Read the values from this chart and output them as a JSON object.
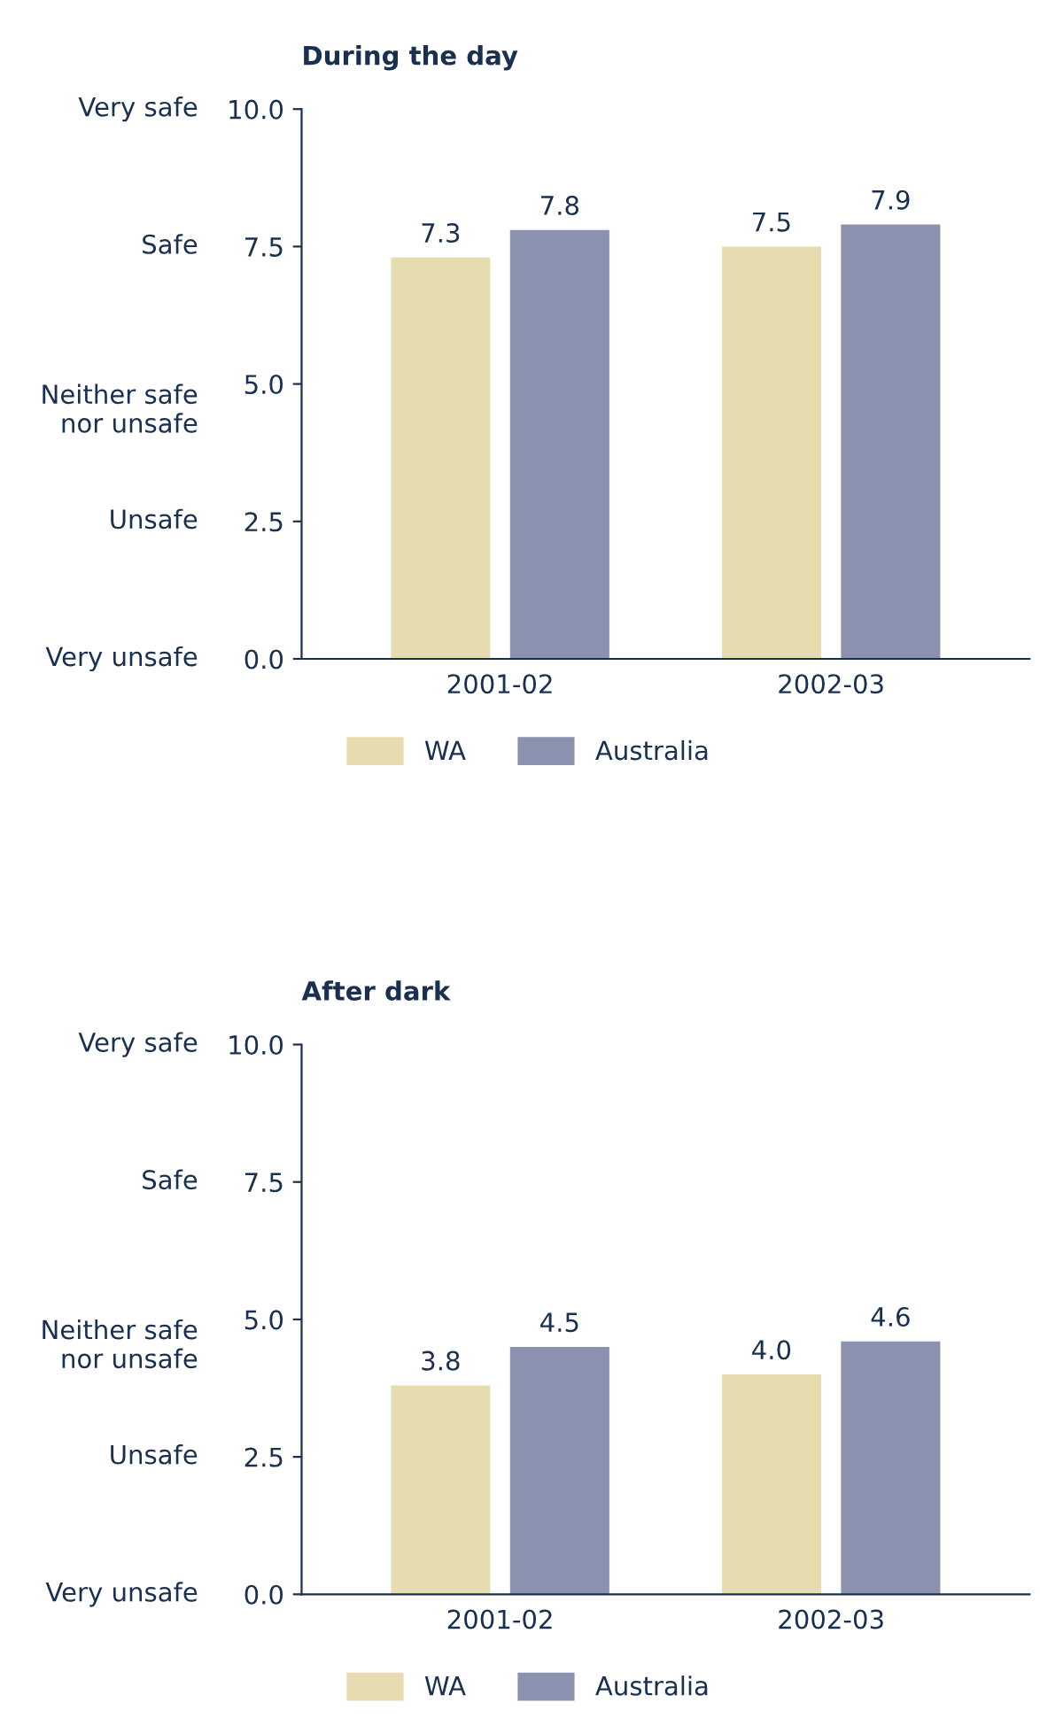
{
  "chart_data": [
    {
      "type": "bar",
      "title": "During the day",
      "categories": [
        "2001-02",
        "2002-03"
      ],
      "series": [
        {
          "name": "WA",
          "color": "#e6dcb0",
          "values": [
            7.3,
            7.5
          ],
          "value_labels": [
            "7.3",
            "7.5"
          ]
        },
        {
          "name": "Australia",
          "color": "#8a92b0",
          "values": [
            7.8,
            7.9
          ],
          "value_labels": [
            "7.8",
            "7.9"
          ]
        }
      ],
      "ylim": [
        0,
        10
      ],
      "yticks": [
        {
          "value": 0,
          "label": "0.0"
        },
        {
          "value": 2.5,
          "label": "2.5"
        },
        {
          "value": 5,
          "label": "5.0"
        },
        {
          "value": 7.5,
          "label": "7.5"
        },
        {
          "value": 10,
          "label": "10.0"
        }
      ],
      "annotations": [
        "Very unsafe",
        "Unsafe",
        "Neither safe\nnor unsafe",
        "Safe",
        "Very safe"
      ],
      "legend": "bottom"
    },
    {
      "type": "bar",
      "title": "After dark",
      "categories": [
        "2001-02",
        "2002-03"
      ],
      "series": [
        {
          "name": "WA",
          "color": "#e6dcb0",
          "values": [
            3.8,
            4.0
          ],
          "value_labels": [
            "3.8",
            "4.0"
          ]
        },
        {
          "name": "Australia",
          "color": "#8a92b0",
          "values": [
            4.5,
            4.6
          ],
          "value_labels": [
            "4.5",
            "4.6"
          ]
        }
      ],
      "ylim": [
        0,
        10
      ],
      "yticks": [
        {
          "value": 0,
          "label": "0.0"
        },
        {
          "value": 2.5,
          "label": "2.5"
        },
        {
          "value": 5,
          "label": "5.0"
        },
        {
          "value": 7.5,
          "label": "7.5"
        },
        {
          "value": 10,
          "label": "10.0"
        }
      ],
      "annotations": [
        "Very unsafe",
        "Unsafe",
        "Neither safe\nnor unsafe",
        "Safe",
        "Very safe"
      ],
      "legend": "bottom"
    }
  ]
}
